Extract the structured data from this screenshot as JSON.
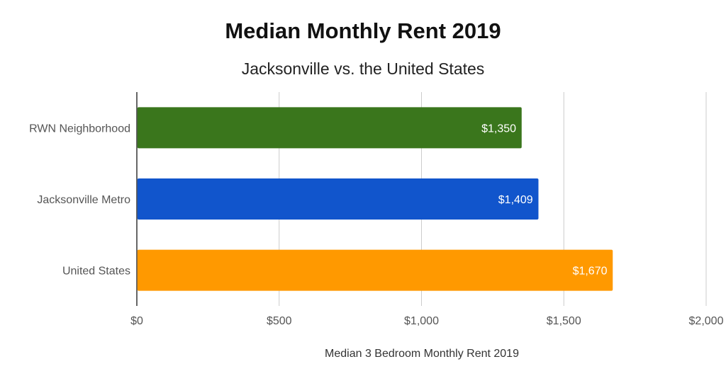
{
  "chart_data": {
    "type": "bar",
    "orientation": "horizontal",
    "title": "Median Monthly Rent 2019",
    "subtitle": "Jacksonville vs. the United States",
    "xlabel": "Median 3 Bedroom Monthly Rent 2019",
    "ylabel": "",
    "categories": [
      "RWN Neighborhood",
      "Jacksonville Metro",
      "United States"
    ],
    "values": [
      1350,
      1409,
      1670
    ],
    "data_labels": [
      "$1,350",
      "$1,409",
      "$1,670"
    ],
    "bar_colors": [
      "#3a761c",
      "#1155cc",
      "#ff9900"
    ],
    "xlim": [
      0,
      2000
    ],
    "xticks": [
      0,
      500,
      1000,
      1500,
      2000
    ],
    "xtick_labels": [
      "$0",
      "$500",
      "$1,000",
      "$1,500",
      "$2,000"
    ],
    "grid": true,
    "legend": "none"
  }
}
